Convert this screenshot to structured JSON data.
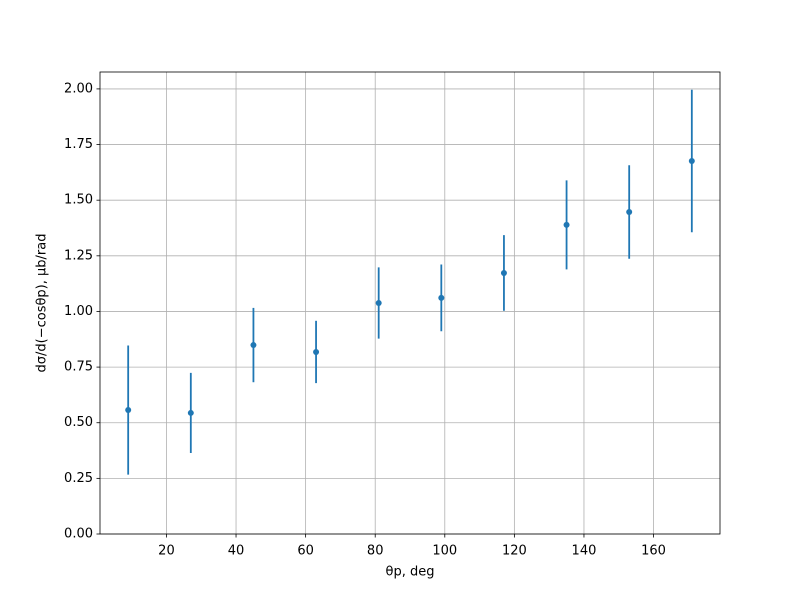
{
  "chart_data": {
    "type": "errorbar",
    "xlabel": "θp, deg",
    "ylabel": "dσ/d(−cosθp), μb/rad",
    "x": [
      9,
      27,
      45,
      63,
      81,
      99,
      117,
      135,
      153,
      171
    ],
    "series": [
      {
        "name": "dσ/d(−cosθp)",
        "color": "#1f77b4",
        "values": [
          0.557,
          0.544,
          0.849,
          0.818,
          1.038,
          1.061,
          1.173,
          1.389,
          1.447,
          1.676
        ],
        "errors": [
          0.29,
          0.18,
          0.167,
          0.14,
          0.16,
          0.15,
          0.17,
          0.2,
          0.21,
          0.32
        ]
      }
    ],
    "xlim": [
      0.9,
      179.1
    ],
    "ylim": [
      0,
      2.076
    ],
    "xticks": [
      20,
      40,
      60,
      80,
      100,
      120,
      140,
      160
    ],
    "yticks": [
      {
        "value": 0,
        "label": "0.00"
      },
      {
        "value": 0.25,
        "label": "0.25"
      },
      {
        "value": 0.5,
        "label": "0.50"
      },
      {
        "value": 0.75,
        "label": "0.75"
      },
      {
        "value": 1,
        "label": "1.00"
      },
      {
        "value": 1.25,
        "label": "1.25"
      },
      {
        "value": 1.5,
        "label": "1.50"
      },
      {
        "value": 1.75,
        "label": "1.75"
      },
      {
        "value": 2,
        "label": "2.00"
      }
    ],
    "grid": true,
    "legend": false
  }
}
